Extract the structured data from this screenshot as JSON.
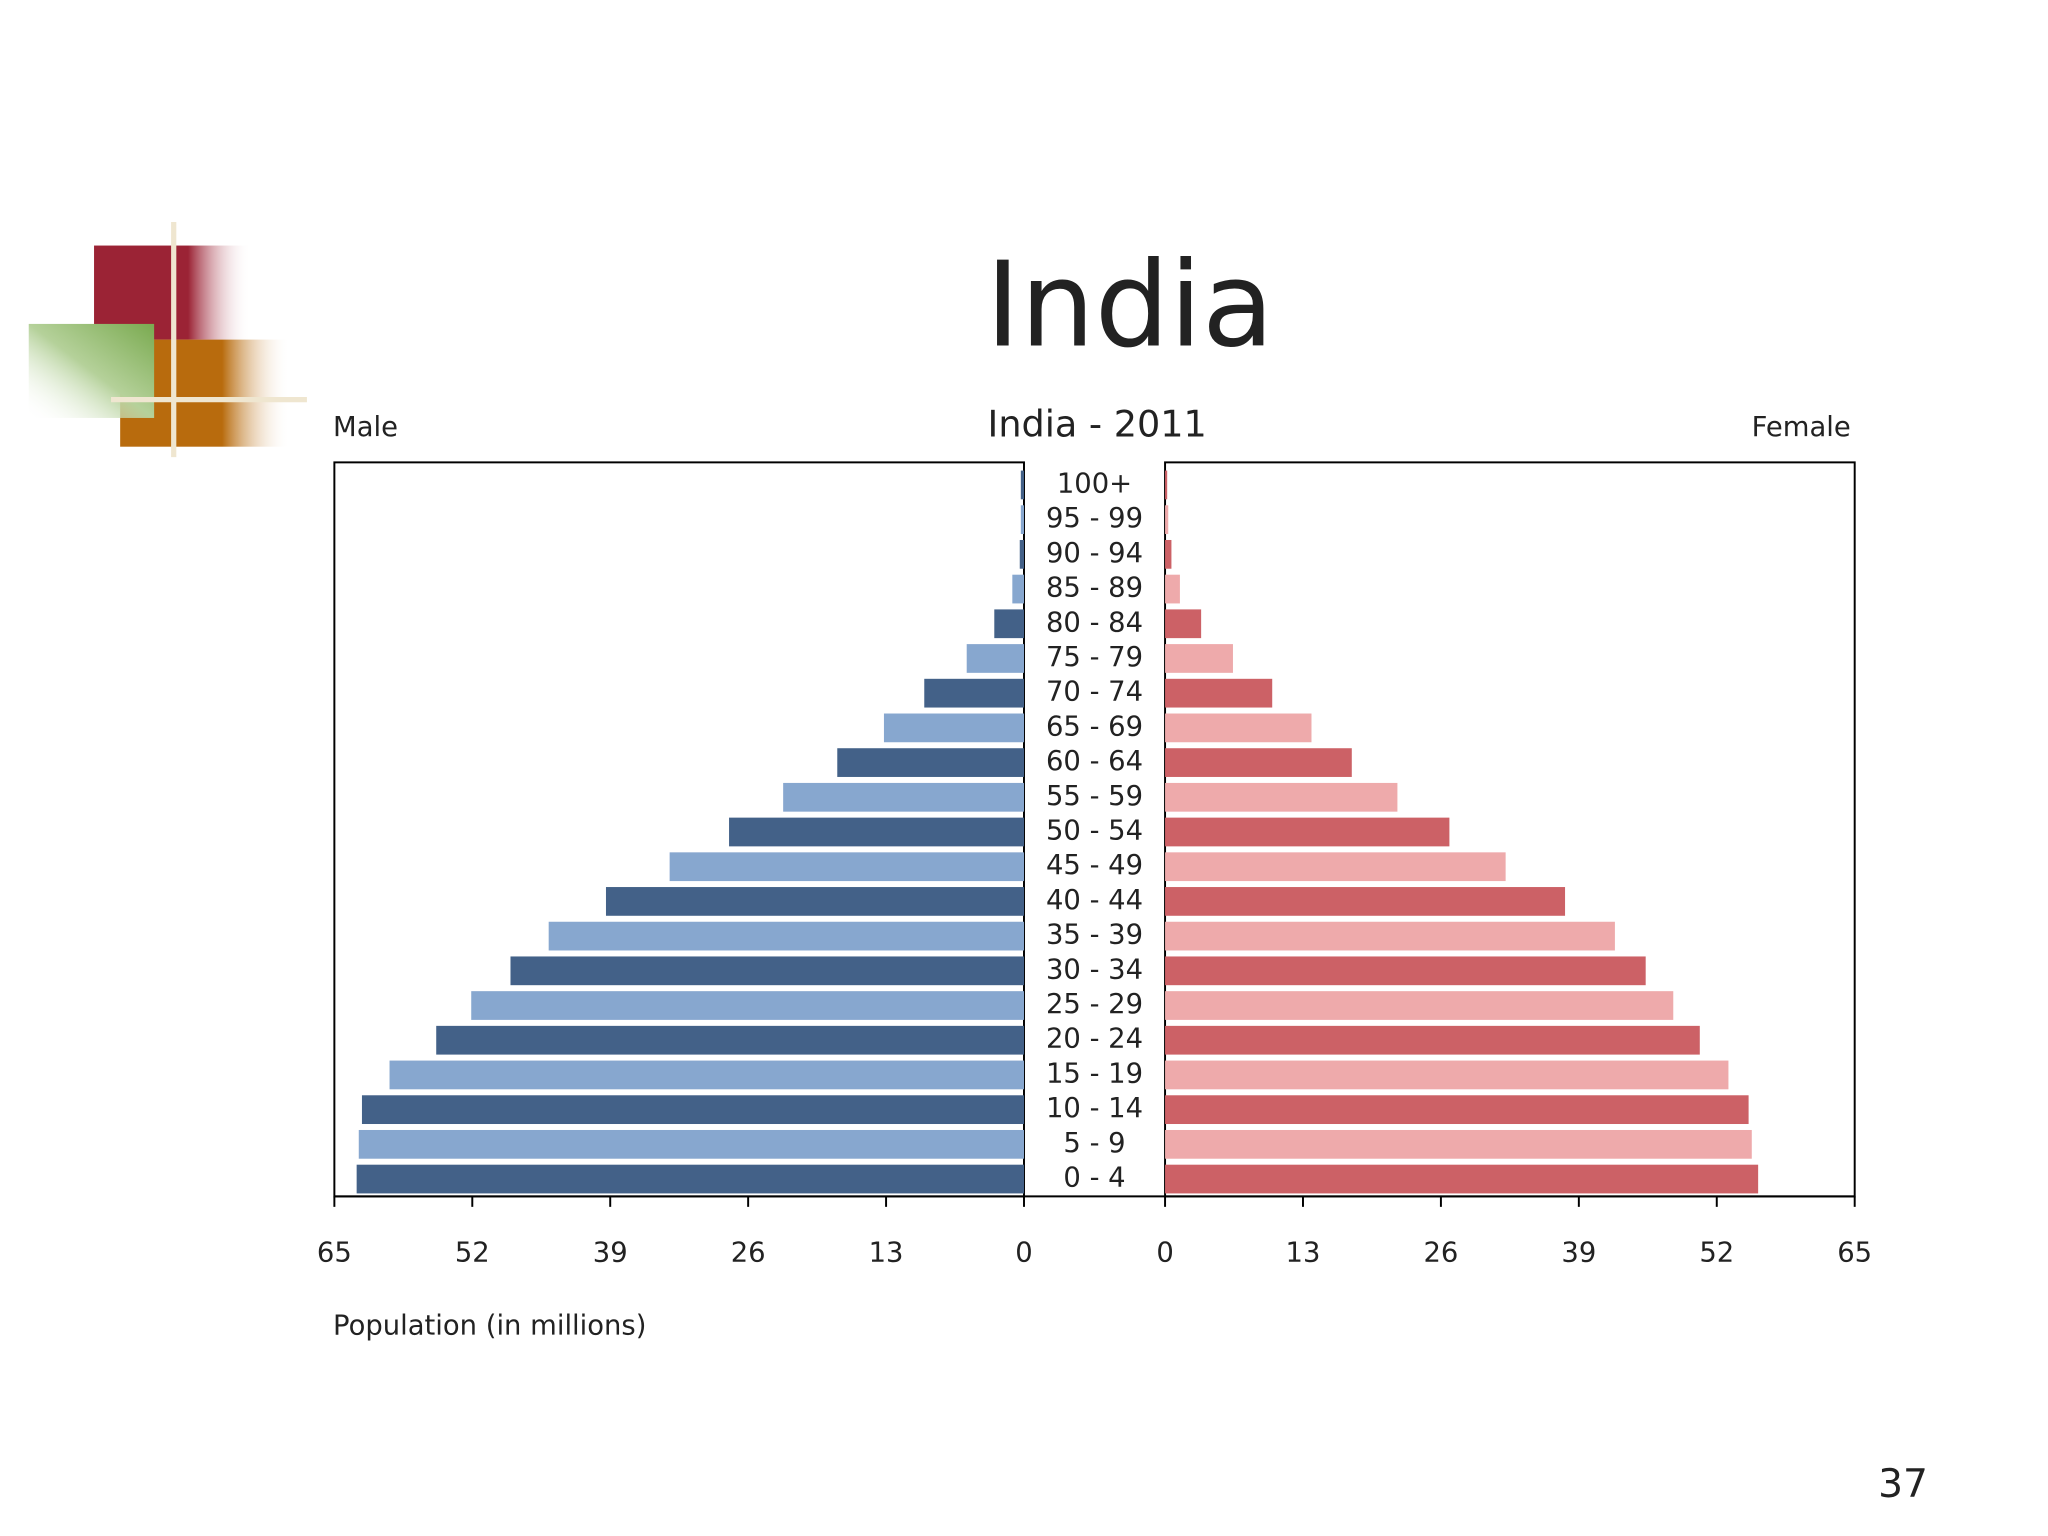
{
  "slide_title": "India",
  "page_number": "37",
  "chart_data": {
    "type": "pyramid",
    "title": "India - 2011",
    "xlabel": "Population (in millions)",
    "categories": [
      "0 - 4",
      "5 - 9",
      "10 - 14",
      "15 - 19",
      "20 - 24",
      "25 - 29",
      "30 - 34",
      "35 - 39",
      "40 - 44",
      "45 - 49",
      "50 - 54",
      "55 - 59",
      "60 - 64",
      "65 - 69",
      "70 - 74",
      "75 - 79",
      "80 - 84",
      "85 - 89",
      "90 - 94",
      "95 - 99",
      "100+"
    ],
    "series": [
      {
        "name": "Male",
        "colors": [
          "#436188",
          "#87a7cf"
        ],
        "values": [
          62.9,
          62.7,
          62.4,
          59.8,
          55.4,
          52.1,
          48.4,
          44.8,
          39.4,
          33.4,
          27.8,
          22.7,
          17.6,
          13.2,
          9.4,
          5.4,
          2.8,
          1.1,
          0.4,
          0.3,
          0.3
        ]
      },
      {
        "name": "Female",
        "colors": [
          "#cc6166",
          "#eeaaab"
        ],
        "values": [
          55.9,
          55.3,
          55.0,
          53.1,
          50.4,
          47.9,
          45.3,
          42.4,
          37.7,
          32.1,
          26.8,
          21.9,
          17.6,
          13.8,
          10.1,
          6.4,
          3.4,
          1.4,
          0.6,
          0.3,
          0.2
        ]
      }
    ],
    "xlim": [
      0,
      65
    ],
    "xticks": [
      0,
      13,
      26,
      39,
      52,
      65
    ]
  }
}
